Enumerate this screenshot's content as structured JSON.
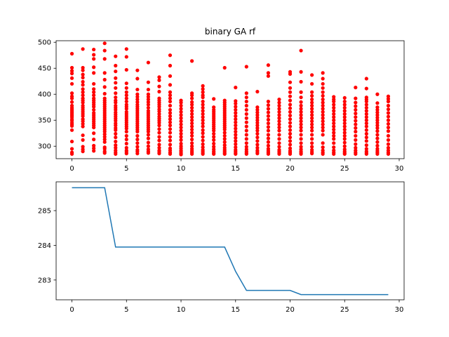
{
  "chart_data": [
    {
      "type": "scatter",
      "title": "binary GA rf",
      "xlabel": "",
      "ylabel": "",
      "xlim": [
        -1.45,
        30.45
      ],
      "ylim": [
        276,
        503
      ],
      "xticks": [
        0,
        5,
        10,
        15,
        20,
        25,
        30
      ],
      "yticks": [
        300,
        350,
        400,
        450,
        500
      ],
      "grid": false,
      "marker_color": "#ff0000",
      "series": [
        {
          "points_by_generation": [
            {
              "x": 0,
              "y": [
                478,
                451,
                445,
                440,
                431,
                420,
                402,
                396,
                392,
                385,
                378,
                374,
                371,
                368,
                365,
                362,
                359,
                356,
                352,
                349,
                345,
                342,
                339,
                331,
                309,
                295,
                288,
                285
              ]
            },
            {
              "x": 1,
              "y": [
                487,
                451,
                446,
                438,
                432,
                424,
                418,
                410,
                404,
                398,
                392,
                388,
                384,
                378,
                374,
                370,
                366,
                362,
                358,
                352,
                348,
                343,
                338,
                321,
                312,
                299,
                294,
                290
              ]
            },
            {
              "x": 2,
              "y": [
                486,
                476,
                468,
                452,
                441,
                420,
                410,
                404,
                398,
                392,
                388,
                384,
                380,
                376,
                370,
                364,
                360,
                356,
                352,
                348,
                344,
                340,
                336,
                325,
                313,
                301,
                296,
                291
              ]
            },
            {
              "x": 3,
              "y": [
                498,
                484,
                468,
                441,
                428,
                414,
                401,
                392,
                388,
                384,
                380,
                376,
                372,
                368,
                364,
                360,
                356,
                352,
                348,
                344,
                340,
                336,
                332,
                328,
                323,
                318,
                313,
                308,
                298,
                295,
                290,
                287
              ]
            },
            {
              "x": 4,
              "y": [
                473,
                455,
                444,
                431,
                422,
                412,
                402,
                394,
                388,
                384,
                378,
                374,
                370,
                365,
                361,
                357,
                353,
                349,
                344,
                340,
                335,
                331,
                324,
                317,
                309,
                302,
                297,
                292,
                288,
                285
              ]
            },
            {
              "x": 5,
              "y": [
                487,
                472,
                447,
                421,
                412,
                404,
                398,
                392,
                386,
                380,
                376,
                372,
                366,
                362,
                358,
                354,
                350,
                346,
                342,
                338,
                334,
                328,
                320,
                313,
                305,
                297,
                292,
                289,
                286
              ]
            },
            {
              "x": 6,
              "y": [
                446,
                430,
                409,
                400,
                395,
                390,
                385,
                380,
                376,
                372,
                368,
                364,
                360,
                356,
                352,
                348,
                344,
                340,
                336,
                332,
                328,
                320,
                313,
                306,
                299,
                293,
                290,
                286
              ]
            },
            {
              "x": 7,
              "y": [
                461,
                423,
                409,
                400,
                395,
                390,
                385,
                380,
                374,
                368,
                364,
                360,
                356,
                352,
                348,
                344,
                340,
                336,
                332,
                328,
                322,
                315,
                307,
                300,
                294,
                290,
                287
              ]
            },
            {
              "x": 8,
              "y": [
                433,
                427,
                415,
                405,
                392,
                388,
                384,
                380,
                376,
                371,
                367,
                362,
                357,
                353,
                349,
                345,
                340,
                333,
                326,
                318,
                311,
                303,
                297,
                292,
                289,
                286
              ]
            },
            {
              "x": 9,
              "y": [
                475,
                455,
                435,
                418,
                404,
                398,
                392,
                386,
                378,
                370,
                364,
                358,
                352,
                346,
                340,
                333,
                326,
                318,
                311,
                303,
                296,
                292,
                288,
                285
              ]
            },
            {
              "x": 10,
              "y": [
                388,
                384,
                378,
                372,
                366,
                360,
                354,
                348,
                342,
                336,
                330,
                324,
                318,
                312,
                305,
                300,
                296,
                292,
                289,
                286,
                284
              ]
            },
            {
              "x": 11,
              "y": [
                464,
                402,
                398,
                392,
                385,
                380,
                374,
                368,
                362,
                356,
                350,
                344,
                338,
                332,
                326,
                320,
                313,
                306,
                300,
                295,
                291,
                288,
                285
              ]
            },
            {
              "x": 12,
              "y": [
                416,
                410,
                404,
                398,
                394,
                386,
                380,
                374,
                368,
                362,
                356,
                350,
                344,
                338,
                331,
                325,
                318,
                311,
                304,
                298,
                293,
                290,
                287,
                285
              ]
            },
            {
              "x": 13,
              "y": [
                391,
                375,
                370,
                366,
                362,
                358,
                354,
                350,
                346,
                342,
                338,
                334,
                330,
                324,
                318,
                312,
                305,
                299,
                294,
                290,
                287,
                285
              ]
            },
            {
              "x": 14,
              "y": [
                451,
                388,
                384,
                380,
                376,
                372,
                368,
                364,
                360,
                356,
                352,
                348,
                344,
                340,
                336,
                332,
                326,
                320,
                314,
                308,
                302,
                297,
                293,
                290,
                287,
                285
              ]
            },
            {
              "x": 15,
              "y": [
                413,
                387,
                382,
                376,
                370,
                364,
                358,
                352,
                346,
                340,
                334,
                328,
                322,
                316,
                310,
                304,
                298,
                293,
                290,
                287,
                285
              ]
            },
            {
              "x": 16,
              "y": [
                453,
                402,
                394,
                386,
                378,
                370,
                362,
                354,
                346,
                338,
                330,
                322,
                314,
                306,
                299,
                294,
                290,
                287,
                285
              ]
            },
            {
              "x": 17,
              "y": [
                405,
                375,
                370,
                365,
                360,
                355,
                350,
                345,
                340,
                335,
                330,
                324,
                317,
                310,
                303,
                297,
                292,
                289,
                286
              ]
            },
            {
              "x": 18,
              "y": [
                456,
                441,
                435,
                386,
                379,
                372,
                365,
                358,
                351,
                344,
                337,
                330,
                322,
                315,
                308,
                301,
                295,
                291,
                288,
                285
              ]
            },
            {
              "x": 19,
              "y": [
                390,
                384,
                378,
                372,
                366,
                360,
                354,
                348,
                342,
                336,
                330,
                322,
                314,
                306,
                299,
                293,
                290,
                287,
                285
              ]
            },
            {
              "x": 20,
              "y": [
                443,
                439,
                423,
                412,
                404,
                396,
                388,
                380,
                373,
                366,
                359,
                352,
                345,
                338,
                331,
                324,
                317,
                310,
                303,
                296,
                291,
                288,
                285
              ]
            },
            {
              "x": 21,
              "y": [
                484,
                443,
                424,
                404,
                394,
                385,
                378,
                372,
                366,
                360,
                354,
                348,
                342,
                336,
                330,
                322,
                314,
                306,
                299,
                294,
                290,
                287,
                285
              ]
            },
            {
              "x": 22,
              "y": [
                437,
                420,
                404,
                397,
                390,
                384,
                378,
                372,
                366,
                360,
                354,
                348,
                342,
                336,
                330,
                322,
                314,
                306,
                299,
                293,
                289,
                286
              ]
            },
            {
              "x": 23,
              "y": [
                441,
                430,
                420,
                412,
                404,
                397,
                390,
                384,
                378,
                372,
                366,
                360,
                354,
                348,
                342,
                336,
                330,
                322,
                306,
                298,
                292,
                288,
                285
              ]
            },
            {
              "x": 24,
              "y": [
                395,
                390,
                386,
                380,
                374,
                368,
                362,
                356,
                350,
                344,
                338,
                332,
                326,
                320,
                314,
                306,
                298,
                292,
                288,
                285
              ]
            },
            {
              "x": 25,
              "y": [
                393,
                386,
                380,
                374,
                368,
                362,
                356,
                350,
                344,
                338,
                332,
                326,
                320,
                314,
                307,
                300,
                294,
                290,
                287,
                285
              ]
            },
            {
              "x": 26,
              "y": [
                413,
                392,
                384,
                377,
                370,
                363,
                356,
                349,
                342,
                335,
                328,
                320,
                312,
                304,
                297,
                292,
                288,
                285
              ]
            },
            {
              "x": 27,
              "y": [
                430,
                411,
                394,
                390,
                386,
                380,
                374,
                368,
                362,
                356,
                350,
                344,
                338,
                331,
                324,
                317,
                310,
                302,
                295,
                290,
                287,
                285
              ]
            },
            {
              "x": 28,
              "y": [
                400,
                383,
                375,
                370,
                365,
                360,
                355,
                350,
                345,
                340,
                335,
                329,
                322,
                315,
                308,
                301,
                295,
                291,
                288,
                285
              ]
            },
            {
              "x": 29,
              "y": [
                396,
                391,
                386,
                378,
                371,
                364,
                357,
                350,
                343,
                336,
                329,
                320,
                312,
                304,
                297,
                292,
                288,
                285
              ]
            }
          ]
        }
      ]
    },
    {
      "type": "line",
      "title": "",
      "xlabel": "",
      "ylabel": "",
      "xlim": [
        -1.45,
        30.45
      ],
      "ylim": [
        282.43,
        285.83
      ],
      "xticks": [
        0,
        5,
        10,
        15,
        20,
        25,
        30
      ],
      "yticks": [
        283,
        284,
        285
      ],
      "grid": false,
      "line_color": "#1f77b4",
      "x": [
        0,
        1,
        2,
        3,
        4,
        5,
        6,
        7,
        8,
        9,
        10,
        11,
        12,
        13,
        14,
        15,
        16,
        17,
        18,
        19,
        20,
        21,
        22,
        23,
        24,
        25,
        26,
        27,
        28,
        29
      ],
      "series": [
        {
          "values": [
            285.66,
            285.66,
            285.66,
            285.66,
            283.95,
            283.95,
            283.95,
            283.95,
            283.95,
            283.95,
            283.95,
            283.95,
            283.95,
            283.95,
            283.95,
            283.25,
            282.7,
            282.7,
            282.7,
            282.7,
            282.7,
            282.58,
            282.58,
            282.58,
            282.58,
            282.58,
            282.58,
            282.58,
            282.58,
            282.58
          ]
        }
      ]
    }
  ]
}
